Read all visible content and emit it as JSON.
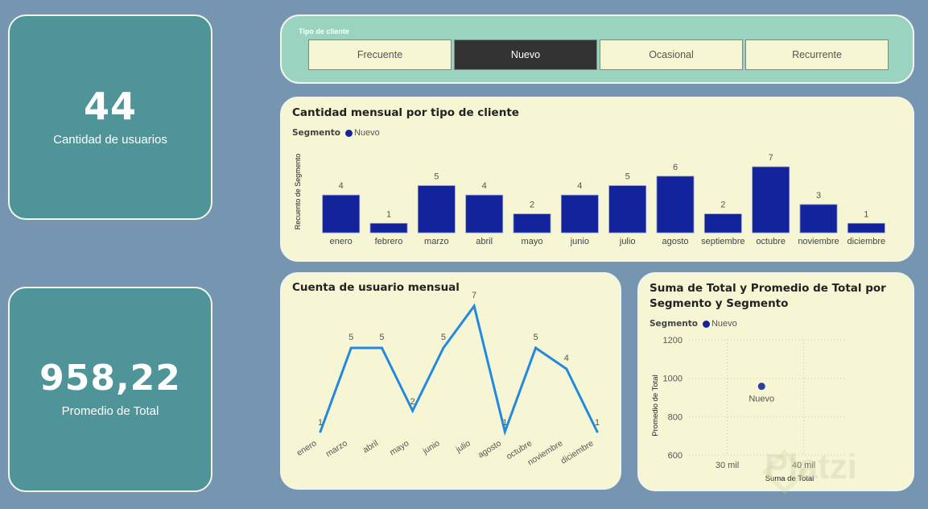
{
  "kpis": [
    {
      "value": "44",
      "label": "Cantidad de usuarios"
    },
    {
      "value": "958,22",
      "label": "Promedio de Total"
    }
  ],
  "slicer": {
    "title": "Tipo de cliente",
    "options": [
      "Frecuente",
      "Nuevo",
      "Ocasional",
      "Recurrente"
    ],
    "selected": "Nuevo"
  },
  "colors": {
    "bar": "#13239c",
    "line": "#2389e0",
    "scatter_point": "#2b3fa0",
    "kpi_bg": "#4f9499",
    "panel_bg": "#f6f6d5",
    "slicer_bg": "#9bd3c1",
    "page_bg": "#7595b0"
  },
  "bar_panel": {
    "title": "Cantidad mensual por tipo de cliente",
    "legend_title": "Segmento",
    "legend_item": "Nuevo"
  },
  "line_panel": {
    "title": "Cuenta de usuario mensual"
  },
  "scatter_panel": {
    "title_line1": "Suma de Total y Promedio de Total por",
    "title_line2": "Segmento y Segmento",
    "legend_title": "Segmento",
    "legend_item": "Nuevo"
  },
  "watermark": "Platzi",
  "chart_data": [
    {
      "type": "bar",
      "title": "Cantidad mensual por tipo de cliente",
      "xlabel": "",
      "ylabel": "Recuento de Segmento",
      "legend": {
        "title": "Segmento",
        "entries": [
          "Nuevo"
        ],
        "placement": "top-left"
      },
      "categories": [
        "enero",
        "febrero",
        "marzo",
        "abril",
        "mayo",
        "junio",
        "julio",
        "agosto",
        "septiembre",
        "octubre",
        "noviembre",
        "diciembre"
      ],
      "series": [
        {
          "name": "Nuevo",
          "values": [
            4,
            1,
            5,
            4,
            2,
            4,
            5,
            6,
            2,
            7,
            3,
            1
          ]
        }
      ],
      "ylim": [
        0,
        7
      ],
      "data_labels": true,
      "grid": false
    },
    {
      "type": "line",
      "title": "Cuenta de usuario mensual",
      "xlabel": "",
      "ylabel": "",
      "categories": [
        "enero",
        "marzo",
        "abril",
        "mayo",
        "junio",
        "julio",
        "agosto",
        "octubre",
        "noviembre",
        "diciembre"
      ],
      "series": [
        {
          "name": "Cuenta de usuario",
          "values": [
            1,
            5,
            5,
            2,
            5,
            7,
            1,
            5,
            4,
            1
          ]
        }
      ],
      "ylim": [
        1,
        7
      ],
      "data_labels": true,
      "grid": false
    },
    {
      "type": "scatter",
      "title": "Suma de Total y Promedio de Total por Segmento y Segmento",
      "xlabel": "Suma de Total",
      "ylabel": "Promedio de Total",
      "legend": {
        "title": "Segmento",
        "entries": [
          "Nuevo"
        ],
        "placement": "top-left"
      },
      "xticks": [
        {
          "value": 30000,
          "label": "30 mil"
        },
        {
          "value": 40000,
          "label": "40 mil"
        }
      ],
      "yticks": [
        600,
        800,
        1000,
        1200
      ],
      "xlim": [
        25000,
        45000
      ],
      "ylim": [
        600,
        1200
      ],
      "points": [
        {
          "label": "Nuevo",
          "x": 34500,
          "y": 958
        }
      ],
      "grid": true
    }
  ]
}
